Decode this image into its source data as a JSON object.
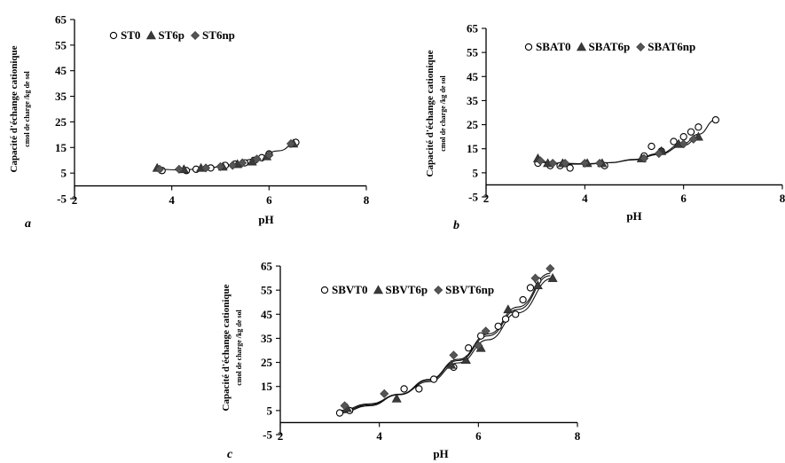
{
  "figure": {
    "ylabel_main": "Capacité d'échange cationique",
    "ylabel_sub": "cmol de charge /kg de sol",
    "xlabel": "pH"
  },
  "chart_data": [
    {
      "panel": "a",
      "type": "scatter",
      "xlabel": "pH",
      "ylabel": "Capacité d'échange cationique",
      "ylabel_sub": "cmol de charge /kg de sol",
      "xlim": [
        2,
        8
      ],
      "ylim": [
        -5,
        65
      ],
      "xticks": [
        2,
        4,
        6,
        8
      ],
      "yticks": [
        -5,
        5,
        15,
        25,
        35,
        45,
        55,
        65
      ],
      "legend_position": "top-left",
      "series": [
        {
          "name": "ST0",
          "marker": "circle-open",
          "x": [
            3.8,
            4.3,
            4.5,
            4.8,
            5.1,
            5.3,
            5.5,
            5.7,
            5.85,
            6.0,
            6.55
          ],
          "y": [
            6,
            6,
            6.5,
            7,
            8,
            8.5,
            9,
            10,
            11,
            12.5,
            17
          ]
        },
        {
          "name": "ST6p",
          "marker": "triangle",
          "x": [
            3.7,
            4.25,
            4.6,
            5.05,
            5.35,
            5.65,
            5.95,
            6.5
          ],
          "y": [
            7,
            6.5,
            7,
            7.5,
            8.5,
            9.5,
            11.5,
            16.5
          ]
        },
        {
          "name": "ST6np",
          "marker": "diamond",
          "x": [
            3.75,
            4.15,
            4.7,
            5.0,
            5.25,
            5.45,
            5.75,
            6.0,
            6.45
          ],
          "y": [
            6.5,
            6.5,
            7,
            7.5,
            8,
            9,
            10.5,
            12,
            16.5
          ]
        }
      ],
      "fit_curves": [
        {
          "x": [
            3.7,
            4.2,
            4.7,
            5.2,
            5.7,
            6.2,
            6.6
          ],
          "y": [
            6.5,
            6.2,
            6.9,
            8.2,
            10.5,
            13.7,
            17.5
          ]
        }
      ]
    },
    {
      "panel": "b",
      "type": "scatter",
      "xlabel": "pH",
      "ylabel": "Capacité d'échange cationique",
      "ylabel_sub": "cmol de charge /kg de sol",
      "xlim": [
        2,
        8
      ],
      "ylim": [
        -5,
        65
      ],
      "xticks": [
        2,
        4,
        6,
        8
      ],
      "yticks": [
        -5,
        5,
        15,
        25,
        35,
        45,
        55,
        65
      ],
      "legend_position": "top-right",
      "series": [
        {
          "name": "SBAT0",
          "marker": "circle-open",
          "x": [
            3.05,
            3.3,
            3.5,
            3.7,
            4.4,
            5.2,
            5.35,
            5.55,
            5.8,
            6.0,
            6.15,
            6.3,
            6.65
          ],
          "y": [
            9,
            8,
            8,
            7,
            8,
            12,
            16,
            14,
            18,
            20,
            22,
            24,
            27
          ]
        },
        {
          "name": "SBAT6p",
          "marker": "triangle",
          "x": [
            3.05,
            3.25,
            3.55,
            4.05,
            4.35,
            5.15,
            5.55,
            5.9,
            6.3
          ],
          "y": [
            11,
            9,
            9,
            9,
            9,
            11,
            14,
            17,
            20
          ]
        },
        {
          "name": "SBAT6np",
          "marker": "diamond",
          "x": [
            3.1,
            3.35,
            3.6,
            4.0,
            4.3,
            5.2,
            5.5,
            6.0,
            6.2
          ],
          "y": [
            10,
            9,
            9,
            9,
            9,
            11,
            13,
            17,
            19
          ]
        }
      ],
      "fit_curves": [
        {
          "x": [
            3.0,
            3.5,
            4.0,
            4.5,
            5.0,
            5.5,
            6.0,
            6.3,
            6.65
          ],
          "y": [
            9.5,
            8.6,
            8.6,
            9.2,
            10.6,
            13.0,
            17.2,
            21.0,
            27.0
          ]
        },
        {
          "x": [
            3.0,
            3.5,
            4.0,
            4.5,
            5.0,
            5.5,
            6.0,
            6.3
          ],
          "y": [
            10.0,
            9.0,
            8.8,
            9.2,
            10.4,
            12.6,
            16.4,
            19.5
          ]
        }
      ]
    },
    {
      "panel": "c",
      "type": "scatter",
      "xlabel": "pH",
      "ylabel": "Capacité d'échange cationique",
      "ylabel_sub": "cmol de charge /kg de sol",
      "xlim": [
        2,
        8
      ],
      "ylim": [
        -5,
        65
      ],
      "xticks": [
        2,
        4,
        6,
        8
      ],
      "yticks": [
        -5,
        5,
        15,
        25,
        35,
        45,
        55,
        65
      ],
      "legend_position": "top-right",
      "series": [
        {
          "name": "SBVT0",
          "marker": "circle-open",
          "x": [
            3.2,
            3.4,
            4.5,
            4.8,
            5.1,
            5.5,
            5.8,
            6.05,
            6.4,
            6.55,
            6.75,
            6.9,
            7.05,
            7.2
          ],
          "y": [
            4,
            5,
            14,
            14,
            18,
            23,
            31,
            36,
            40,
            43,
            45,
            51,
            56,
            59
          ]
        },
        {
          "name": "SBVT6p",
          "marker": "triangle",
          "x": [
            3.35,
            4.35,
            5.45,
            5.75,
            6.05,
            6.6,
            7.2,
            7.5
          ],
          "y": [
            6,
            10,
            24,
            26,
            31,
            47,
            57,
            60
          ]
        },
        {
          "name": "SBVT6np",
          "marker": "diamond",
          "x": [
            3.3,
            4.1,
            5.5,
            6.0,
            6.15,
            7.15,
            7.45
          ],
          "y": [
            7,
            12,
            28,
            32,
            38,
            60,
            64
          ]
        }
      ],
      "fit_curves": [
        {
          "x": [
            3.2,
            3.8,
            4.4,
            5.0,
            5.6,
            6.2,
            6.8,
            7.45
          ],
          "y": [
            4.0,
            7.0,
            11.6,
            17.9,
            26.3,
            36.8,
            48.0,
            62.0
          ]
        },
        {
          "x": [
            3.2,
            3.8,
            4.4,
            5.0,
            5.6,
            6.2,
            6.8,
            7.5
          ],
          "y": [
            5.0,
            7.8,
            11.6,
            17.0,
            24.8,
            34.4,
            45.6,
            60.0
          ]
        },
        {
          "x": [
            3.2,
            3.8,
            4.4,
            5.0,
            5.6,
            6.2,
            6.8,
            7.45
          ],
          "y": [
            4.5,
            7.4,
            11.8,
            17.6,
            25.8,
            36.0,
            47.0,
            61.0
          ]
        }
      ]
    }
  ]
}
